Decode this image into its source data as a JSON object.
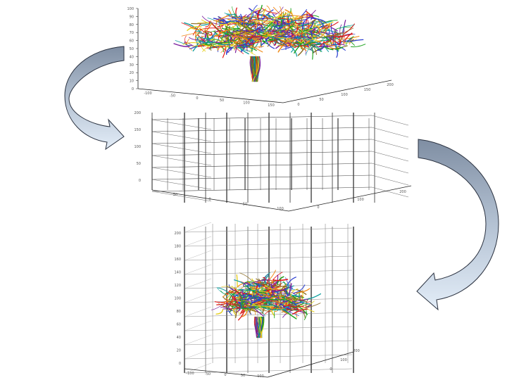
{
  "panels": [
    {
      "id": "tractography",
      "z_ticks": [
        "0",
        "10",
        "20",
        "30",
        "40",
        "50",
        "60",
        "70",
        "80",
        "90",
        "100"
      ],
      "x_ticks": [
        "-100",
        "-50",
        "0",
        "50",
        "100",
        "150"
      ],
      "y_ticks": [
        "0",
        "50",
        "100",
        "150",
        "200"
      ]
    },
    {
      "id": "voxel-grid",
      "z_ticks": [
        "0",
        "50",
        "100",
        "150",
        "200"
      ],
      "x_ticks": [
        "-50",
        "0",
        "50",
        "100"
      ],
      "y_ticks": [
        "0",
        "100",
        "200"
      ]
    },
    {
      "id": "fibers-in-grid",
      "z_ticks": [
        "0",
        "20",
        "40",
        "60",
        "80",
        "100",
        "120",
        "140",
        "160",
        "180",
        "200"
      ],
      "x_ticks": [
        "-100",
        "-50",
        "0",
        "50",
        "100"
      ],
      "y_ticks": [
        "0",
        "100",
        "200"
      ]
    }
  ],
  "colors": {
    "arrow_dark": "#8fa0b5",
    "arrow_light": "#dce8f6",
    "arrow_stroke": "#2b3240",
    "grid_line": "#111111",
    "grid_faint": "#9a9a9a",
    "fiber_palette": [
      "#1fa31f",
      "#e01818",
      "#2a3cd0",
      "#e6d020",
      "#8a6a1e",
      "#11a0a0",
      "#f08a18",
      "#7a1f9e"
    ]
  }
}
